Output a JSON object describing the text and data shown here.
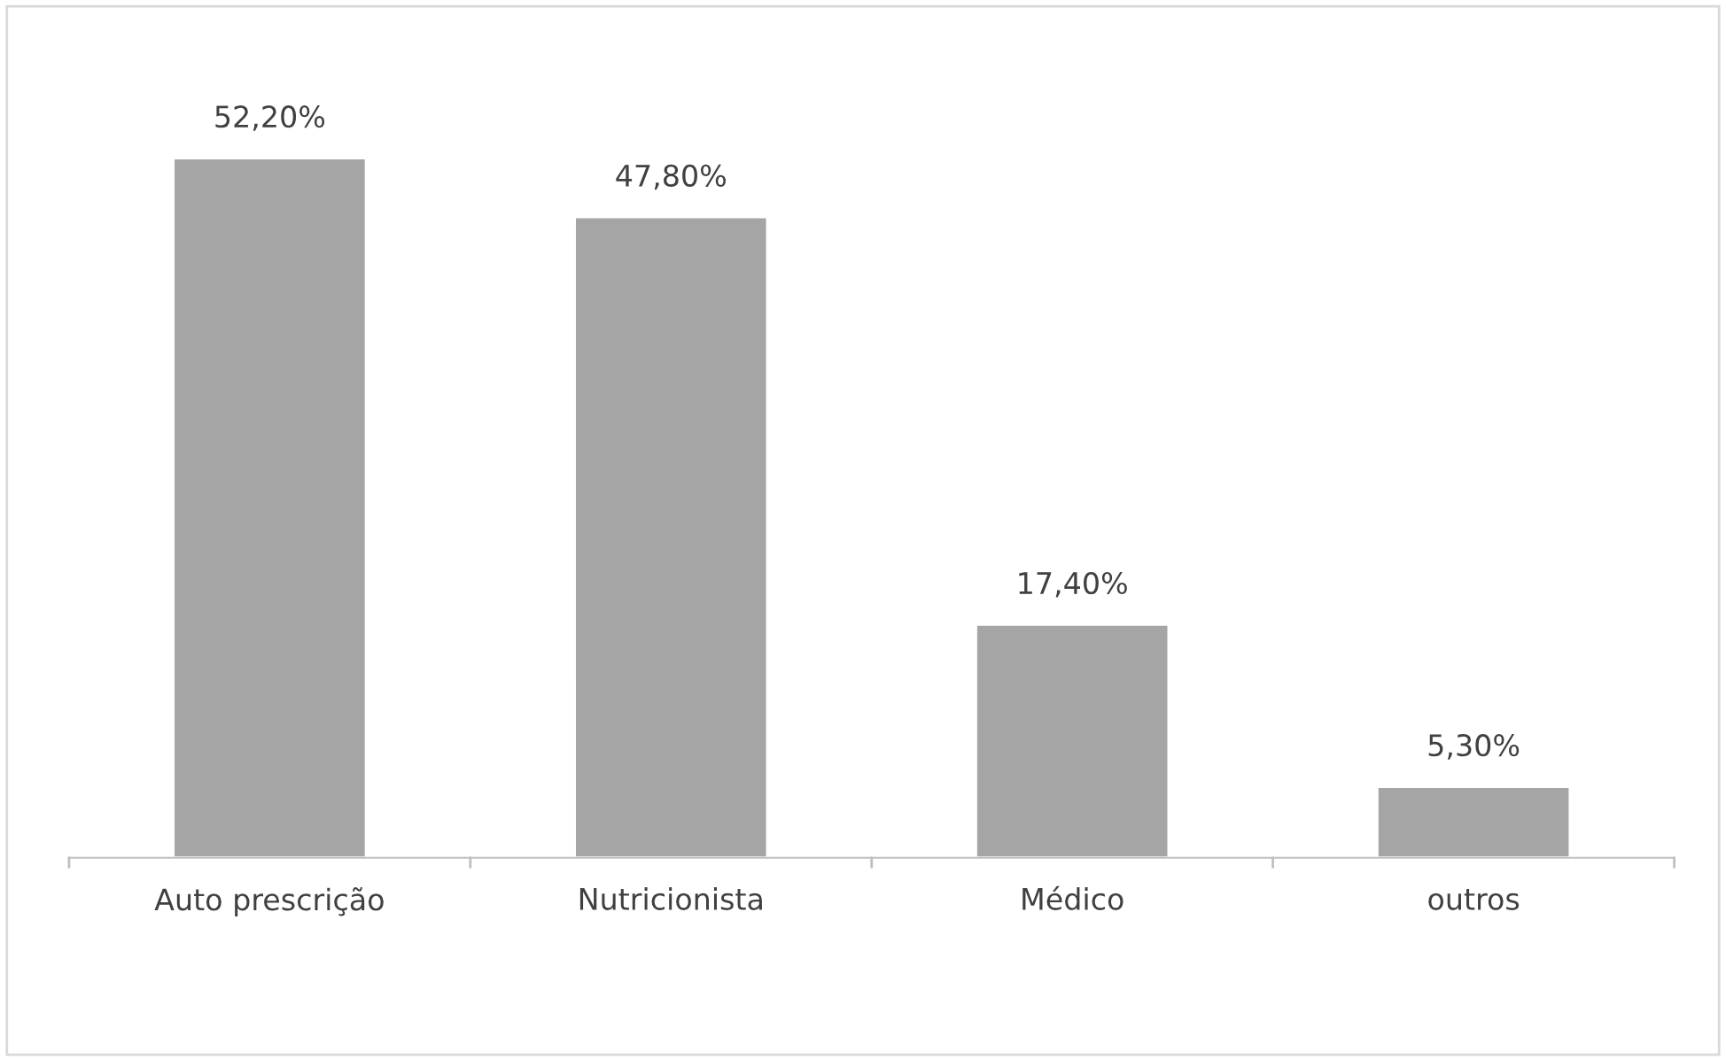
{
  "chart_data": {
    "type": "bar",
    "categories": [
      "Auto prescrição",
      "Nutricionista",
      "Médico",
      "outros"
    ],
    "values": [
      52.2,
      47.8,
      17.4,
      5.3
    ],
    "value_labels": [
      "52,20%",
      "47,80%",
      "17,40%",
      "5,30%"
    ],
    "color": "#a5a5a5",
    "grid": false,
    "legend": false
  }
}
